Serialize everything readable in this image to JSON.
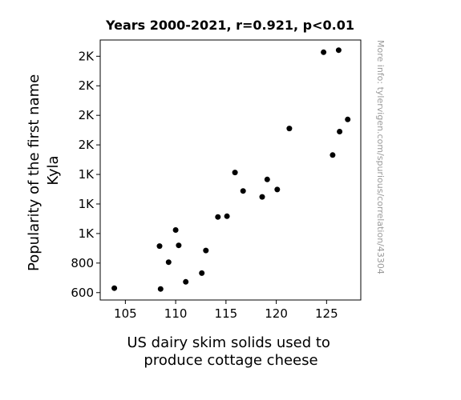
{
  "chart_data": {
    "type": "scatter",
    "title": "Years 2000-2021, r=0.921, p<0.01",
    "xlabel": [
      "US dairy skim solids used to",
      "produce cottage cheese"
    ],
    "ylabel": [
      "Popularity of the first name",
      "Kyla"
    ],
    "watermark": "More info: tylervigen.com/spurious/correlation/43304",
    "xlim": [
      102.5,
      128.4
    ],
    "ylim": [
      550,
      2310
    ],
    "x_ticks": [
      105,
      110,
      115,
      120,
      125
    ],
    "x_tick_labels": [
      "105",
      "110",
      "115",
      "120",
      "125"
    ],
    "y_ticks": [
      600,
      800,
      1000,
      1200,
      1400,
      1600,
      1800,
      2000,
      2200
    ],
    "y_tick_labels": [
      "600",
      "800",
      "1K",
      "1K",
      "1K",
      "2K",
      "2K",
      "2K",
      "2K"
    ],
    "point_color": "#000000",
    "grid": false,
    "points": [
      {
        "x": 103.9,
        "y": 630
      },
      {
        "x": 108.4,
        "y": 915
      },
      {
        "x": 108.5,
        "y": 625
      },
      {
        "x": 109.3,
        "y": 806
      },
      {
        "x": 110.0,
        "y": 1024
      },
      {
        "x": 110.3,
        "y": 920
      },
      {
        "x": 111.0,
        "y": 673
      },
      {
        "x": 112.6,
        "y": 732
      },
      {
        "x": 113.0,
        "y": 885
      },
      {
        "x": 114.2,
        "y": 1112
      },
      {
        "x": 115.1,
        "y": 1117
      },
      {
        "x": 115.9,
        "y": 1413
      },
      {
        "x": 116.7,
        "y": 1288
      },
      {
        "x": 118.6,
        "y": 1248
      },
      {
        "x": 119.1,
        "y": 1366
      },
      {
        "x": 120.1,
        "y": 1298
      },
      {
        "x": 121.3,
        "y": 1711
      },
      {
        "x": 124.7,
        "y": 2227
      },
      {
        "x": 125.6,
        "y": 1531
      },
      {
        "x": 126.2,
        "y": 2241
      },
      {
        "x": 126.3,
        "y": 1690
      },
      {
        "x": 127.1,
        "y": 1772
      }
    ]
  }
}
